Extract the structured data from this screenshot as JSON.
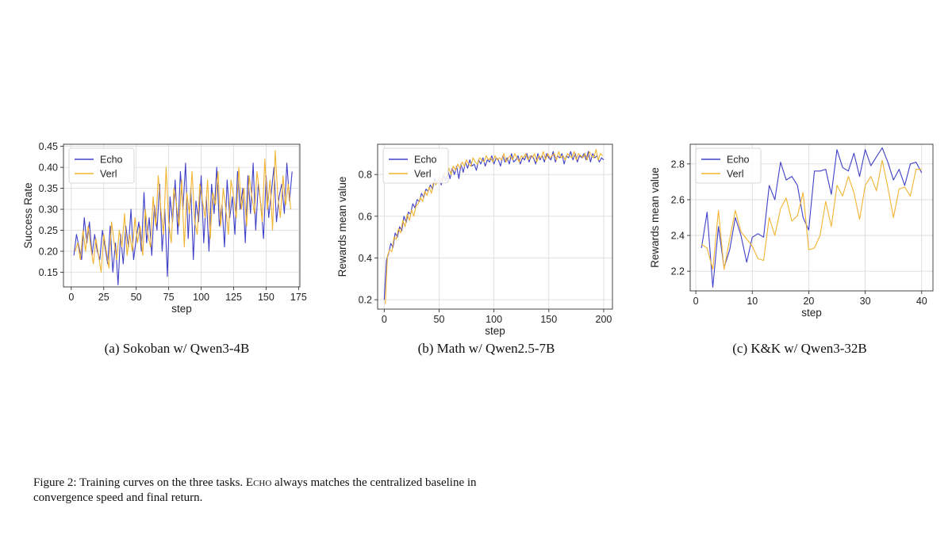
{
  "figure": {
    "label": "Figure 2:",
    "caption_pre": "Training curves on the three tasks.",
    "caption_name": "Echo",
    "caption_post": "always matches the centralized baseline in convergence speed and final return."
  },
  "colors": {
    "echo": "#4040c8",
    "verl": "#f2b431"
  },
  "chart_data": [
    {
      "type": "line",
      "caption": "(a) Sokoban w/ Qwen3-4B",
      "xlabel": "step",
      "ylabel": "Success Rate",
      "xlim": [
        -6,
        176
      ],
      "ylim": [
        0.115,
        0.455
      ],
      "xticks": [
        0,
        25,
        50,
        75,
        100,
        125,
        150,
        175
      ],
      "yticks": [
        0.15,
        0.2,
        0.25,
        0.3,
        0.35,
        0.4,
        0.45
      ],
      "ytick_labels": [
        "0.15",
        "0.20",
        "0.25",
        "0.30",
        "0.35",
        "0.40",
        "0.45"
      ],
      "grid": true,
      "legend": "top-left",
      "series": [
        {
          "name": "Echo",
          "x": [
            2,
            4,
            6,
            8,
            10,
            12,
            14,
            16,
            18,
            20,
            22,
            24,
            26,
            28,
            30,
            32,
            34,
            36,
            38,
            40,
            42,
            44,
            46,
            48,
            50,
            52,
            54,
            56,
            58,
            60,
            62,
            64,
            66,
            68,
            70,
            72,
            74,
            76,
            78,
            80,
            82,
            84,
            86,
            88,
            90,
            92,
            94,
            96,
            98,
            100,
            102,
            104,
            106,
            108,
            110,
            112,
            114,
            116,
            118,
            120,
            122,
            124,
            126,
            128,
            130,
            132,
            134,
            136,
            138,
            140,
            142,
            144,
            146,
            148,
            150,
            152,
            154,
            156,
            158,
            160,
            162,
            164,
            166,
            168,
            170
          ],
          "y": [
            0.19,
            0.24,
            0.21,
            0.18,
            0.28,
            0.22,
            0.27,
            0.19,
            0.24,
            0.2,
            0.18,
            0.25,
            0.21,
            0.17,
            0.26,
            0.15,
            0.22,
            0.12,
            0.24,
            0.17,
            0.26,
            0.21,
            0.3,
            0.18,
            0.23,
            0.27,
            0.2,
            0.34,
            0.22,
            0.28,
            0.19,
            0.31,
            0.25,
            0.36,
            0.2,
            0.3,
            0.14,
            0.33,
            0.27,
            0.37,
            0.24,
            0.39,
            0.3,
            0.41,
            0.23,
            0.35,
            0.18,
            0.32,
            0.27,
            0.38,
            0.22,
            0.33,
            0.2,
            0.36,
            0.29,
            0.4,
            0.26,
            0.31,
            0.21,
            0.37,
            0.28,
            0.33,
            0.24,
            0.39,
            0.3,
            0.35,
            0.22,
            0.38,
            0.29,
            0.41,
            0.25,
            0.36,
            0.31,
            0.23,
            0.38,
            0.28,
            0.34,
            0.4,
            0.27,
            0.33,
            0.36,
            0.29,
            0.41,
            0.32,
            0.39
          ]
        },
        {
          "name": "Verl",
          "x": [
            3,
            5,
            7,
            9,
            11,
            13,
            15,
            17,
            19,
            21,
            23,
            25,
            27,
            29,
            31,
            33,
            35,
            37,
            39,
            41,
            43,
            45,
            47,
            49,
            51,
            53,
            55,
            57,
            59,
            61,
            63,
            65,
            67,
            69,
            71,
            73,
            75,
            77,
            79,
            81,
            83,
            85,
            87,
            89,
            91,
            93,
            95,
            97,
            99,
            101,
            103,
            105,
            107,
            109,
            111,
            113,
            115,
            117,
            119,
            121,
            123,
            125,
            127,
            129,
            131,
            133,
            135,
            137,
            139,
            141,
            143,
            145,
            147,
            149,
            151,
            153,
            155,
            157,
            159,
            161,
            163,
            165,
            167,
            169
          ],
          "y": [
            0.2,
            0.22,
            0.18,
            0.25,
            0.2,
            0.26,
            0.21,
            0.17,
            0.23,
            0.19,
            0.15,
            0.24,
            0.2,
            0.16,
            0.27,
            0.22,
            0.18,
            0.25,
            0.21,
            0.29,
            0.19,
            0.24,
            0.2,
            0.28,
            0.22,
            0.26,
            0.19,
            0.3,
            0.24,
            0.21,
            0.33,
            0.26,
            0.38,
            0.3,
            0.24,
            0.4,
            0.27,
            0.22,
            0.35,
            0.31,
            0.26,
            0.37,
            0.21,
            0.34,
            0.29,
            0.39,
            0.27,
            0.24,
            0.36,
            0.32,
            0.28,
            0.37,
            0.23,
            0.34,
            0.31,
            0.39,
            0.26,
            0.35,
            0.3,
            0.24,
            0.37,
            0.33,
            0.28,
            0.4,
            0.3,
            0.35,
            0.26,
            0.38,
            0.33,
            0.29,
            0.39,
            0.34,
            0.27,
            0.42,
            0.3,
            0.37,
            0.25,
            0.44,
            0.33,
            0.28,
            0.38,
            0.31,
            0.36,
            0.3
          ]
        }
      ]
    },
    {
      "type": "line",
      "caption": "(b) Math w/ Qwen2.5-7B",
      "xlabel": "step",
      "ylabel": "Rewards mean value",
      "xlim": [
        -6,
        208
      ],
      "ylim": [
        0.155,
        0.945
      ],
      "xticks": [
        0,
        50,
        100,
        150,
        200
      ],
      "yticks": [
        0.2,
        0.4,
        0.6,
        0.8
      ],
      "ytick_labels": [
        "0.2",
        "0.4",
        "0.6",
        "0.8"
      ],
      "grid": true,
      "legend": "top-left",
      "series": [
        {
          "name": "Echo",
          "x": [
            0,
            2,
            4,
            6,
            8,
            10,
            12,
            14,
            16,
            18,
            20,
            22,
            24,
            26,
            28,
            30,
            32,
            34,
            36,
            38,
            40,
            42,
            44,
            46,
            48,
            50,
            52,
            54,
            56,
            58,
            60,
            62,
            64,
            66,
            68,
            70,
            72,
            74,
            76,
            78,
            80,
            82,
            84,
            86,
            88,
            90,
            92,
            94,
            96,
            98,
            100,
            102,
            104,
            106,
            108,
            110,
            112,
            114,
            116,
            118,
            120,
            122,
            124,
            126,
            128,
            130,
            132,
            134,
            136,
            138,
            140,
            142,
            144,
            146,
            148,
            150,
            152,
            154,
            156,
            158,
            160,
            162,
            164,
            166,
            168,
            170,
            172,
            174,
            176,
            178,
            180,
            182,
            184,
            186,
            188,
            190,
            192,
            194,
            196,
            198,
            200
          ],
          "y": [
            0.2,
            0.39,
            0.42,
            0.47,
            0.45,
            0.52,
            0.5,
            0.55,
            0.53,
            0.6,
            0.57,
            0.62,
            0.61,
            0.66,
            0.64,
            0.68,
            0.67,
            0.71,
            0.69,
            0.73,
            0.72,
            0.75,
            0.73,
            0.78,
            0.76,
            0.78,
            0.75,
            0.8,
            0.77,
            0.82,
            0.78,
            0.83,
            0.8,
            0.84,
            0.78,
            0.85,
            0.81,
            0.86,
            0.83,
            0.87,
            0.84,
            0.85,
            0.82,
            0.87,
            0.85,
            0.88,
            0.84,
            0.87,
            0.86,
            0.89,
            0.85,
            0.88,
            0.87,
            0.84,
            0.89,
            0.86,
            0.88,
            0.85,
            0.9,
            0.86,
            0.87,
            0.89,
            0.85,
            0.88,
            0.87,
            0.9,
            0.86,
            0.89,
            0.88,
            0.85,
            0.9,
            0.87,
            0.89,
            0.86,
            0.9,
            0.88,
            0.87,
            0.91,
            0.86,
            0.89,
            0.88,
            0.9,
            0.85,
            0.89,
            0.88,
            0.91,
            0.87,
            0.9,
            0.86,
            0.89,
            0.88,
            0.9,
            0.87,
            0.91,
            0.86,
            0.9,
            0.88,
            0.89,
            0.86,
            0.88,
            0.87
          ]
        },
        {
          "name": "Verl",
          "x": [
            1,
            3,
            5,
            7,
            9,
            11,
            13,
            15,
            17,
            19,
            21,
            23,
            25,
            27,
            29,
            31,
            33,
            35,
            37,
            39,
            41,
            43,
            45,
            47,
            49,
            51,
            53,
            55,
            57,
            59,
            61,
            63,
            65,
            67,
            69,
            71,
            73,
            75,
            77,
            79,
            81,
            83,
            85,
            87,
            89,
            91,
            93,
            95,
            97,
            99,
            101,
            103,
            105,
            107,
            109,
            111,
            113,
            115,
            117,
            119,
            121,
            123,
            125,
            127,
            129,
            131,
            133,
            135,
            137,
            139,
            141,
            143,
            145,
            147,
            149,
            151,
            153,
            155,
            157,
            159,
            161,
            163,
            165,
            167,
            169,
            171,
            173,
            175,
            177,
            179,
            181,
            183,
            185,
            187,
            189,
            191,
            193,
            195,
            197,
            199
          ],
          "y": [
            0.18,
            0.41,
            0.44,
            0.43,
            0.5,
            0.49,
            0.54,
            0.52,
            0.58,
            0.55,
            0.61,
            0.58,
            0.63,
            0.6,
            0.65,
            0.66,
            0.69,
            0.67,
            0.72,
            0.7,
            0.74,
            0.71,
            0.77,
            0.75,
            0.77,
            0.79,
            0.76,
            0.81,
            0.79,
            0.83,
            0.8,
            0.84,
            0.82,
            0.85,
            0.83,
            0.86,
            0.84,
            0.87,
            0.85,
            0.84,
            0.88,
            0.86,
            0.85,
            0.88,
            0.87,
            0.86,
            0.89,
            0.87,
            0.88,
            0.86,
            0.89,
            0.87,
            0.88,
            0.87,
            0.9,
            0.86,
            0.88,
            0.89,
            0.87,
            0.9,
            0.88,
            0.86,
            0.89,
            0.88,
            0.9,
            0.87,
            0.89,
            0.88,
            0.9,
            0.86,
            0.89,
            0.88,
            0.91,
            0.87,
            0.9,
            0.88,
            0.89,
            0.9,
            0.87,
            0.91,
            0.88,
            0.89,
            0.87,
            0.9,
            0.89,
            0.88,
            0.91,
            0.87,
            0.9,
            0.89,
            0.88,
            0.9,
            0.87,
            0.91,
            0.89,
            0.88,
            0.92,
            0.87,
            0.9,
            0.89
          ]
        }
      ]
    },
    {
      "type": "line",
      "caption": "(c) K&K w/ Qwen3-32B",
      "xlabel": "step",
      "ylabel": "Rewards mean value",
      "xlim": [
        -1,
        42
      ],
      "ylim": [
        2.09,
        2.91
      ],
      "xticks": [
        0,
        10,
        20,
        30,
        40
      ],
      "yticks": [
        2.2,
        2.4,
        2.6,
        2.8
      ],
      "ytick_labels": [
        "2.2",
        "2.4",
        "2.6",
        "2.8"
      ],
      "grid": true,
      "legend": "top-left",
      "series": [
        {
          "name": "Echo",
          "x": [
            1,
            2,
            3,
            4,
            5,
            6,
            7,
            8,
            9,
            10,
            11,
            12,
            13,
            14,
            15,
            16,
            17,
            18,
            19,
            20,
            21,
            22,
            23,
            24,
            25,
            26,
            27,
            28,
            29,
            30,
            31,
            32,
            33,
            34,
            35,
            36,
            37,
            38,
            39,
            40
          ],
          "y": [
            2.33,
            2.53,
            2.11,
            2.45,
            2.22,
            2.32,
            2.5,
            2.4,
            2.25,
            2.39,
            2.41,
            2.39,
            2.68,
            2.6,
            2.81,
            2.71,
            2.73,
            2.68,
            2.5,
            2.43,
            2.76,
            2.76,
            2.77,
            2.63,
            2.88,
            2.78,
            2.76,
            2.86,
            2.73,
            2.88,
            2.79,
            2.84,
            2.89,
            2.81,
            2.71,
            2.77,
            2.68,
            2.8,
            2.81,
            2.75
          ]
        },
        {
          "name": "Verl",
          "x": [
            1,
            2,
            3,
            4,
            5,
            6,
            7,
            8,
            9,
            10,
            11,
            12,
            13,
            14,
            15,
            16,
            17,
            18,
            19,
            20,
            21,
            22,
            23,
            24,
            25,
            26,
            27,
            28,
            29,
            30,
            31,
            32,
            33,
            34,
            35,
            36,
            37,
            38,
            39,
            40
          ],
          "y": [
            2.35,
            2.33,
            2.21,
            2.54,
            2.21,
            2.38,
            2.54,
            2.42,
            2.38,
            2.34,
            2.27,
            2.26,
            2.5,
            2.4,
            2.55,
            2.61,
            2.48,
            2.51,
            2.64,
            2.32,
            2.33,
            2.4,
            2.59,
            2.45,
            2.68,
            2.62,
            2.73,
            2.64,
            2.49,
            2.68,
            2.73,
            2.65,
            2.82,
            2.67,
            2.5,
            2.66,
            2.67,
            2.62,
            2.77,
            2.77
          ]
        }
      ]
    }
  ]
}
